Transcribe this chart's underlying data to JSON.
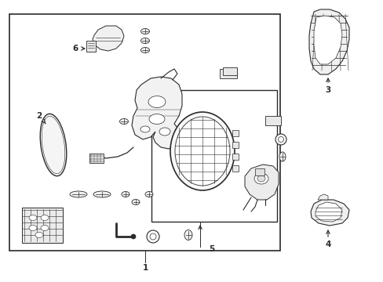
{
  "bg_color": "#ffffff",
  "line_color": "#2a2a2a",
  "lw": 0.7,
  "fig_w": 4.89,
  "fig_h": 3.6,
  "dpi": 100
}
